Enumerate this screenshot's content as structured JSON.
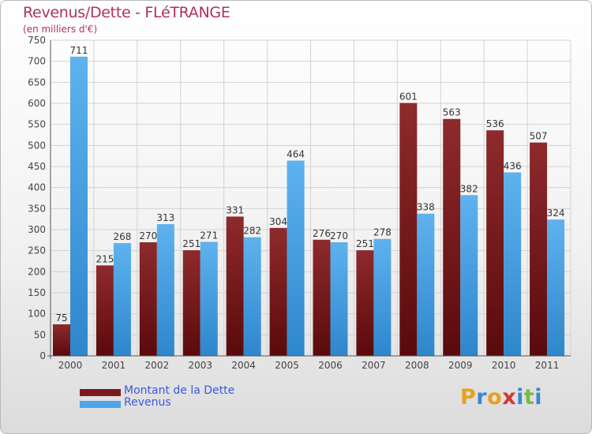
{
  "page": {
    "title": "Revenus/Dette - FLéTRANGE",
    "subtitle": "(en milliers d'€)"
  },
  "legend": [
    {
      "label": "Montant de la Dette",
      "color": "#7a1a1c"
    },
    {
      "label": "Revenus",
      "color": "#4ea6e6"
    }
  ],
  "logo": {
    "letters": [
      "P",
      "r",
      "o",
      "x",
      "i",
      "t",
      "i"
    ],
    "colors": [
      "#e8a020",
      "#3c88cf",
      "#e8a020",
      "#cf3a30",
      "#3c88cf",
      "#7ab848",
      "#3c88cf"
    ],
    "name": "Proxiti"
  },
  "chart_data": {
    "type": "bar",
    "title": "Revenus/Dette - FLéTRANGE",
    "subtitle": "(en milliers d'€)",
    "categories": [
      "2000",
      "2001",
      "2002",
      "2003",
      "2004",
      "2005",
      "2006",
      "2007",
      "2008",
      "2009",
      "2010",
      "2011"
    ],
    "series": [
      {
        "name": "Montant de la Dette",
        "color": "#7a1a1c",
        "values": [
          75,
          215,
          270,
          251,
          331,
          304,
          276,
          251,
          601,
          563,
          536,
          507
        ]
      },
      {
        "name": "Revenus",
        "color": "#4ea6e6",
        "values": [
          711,
          268,
          313,
          271,
          282,
          464,
          270,
          278,
          338,
          382,
          436,
          324
        ]
      }
    ],
    "ylim": [
      0,
      750
    ],
    "yticks": [
      0,
      50,
      100,
      150,
      200,
      250,
      300,
      350,
      400,
      450,
      500,
      550,
      600,
      650,
      700,
      750
    ],
    "grid": true,
    "legend_position": "bottom-left"
  }
}
